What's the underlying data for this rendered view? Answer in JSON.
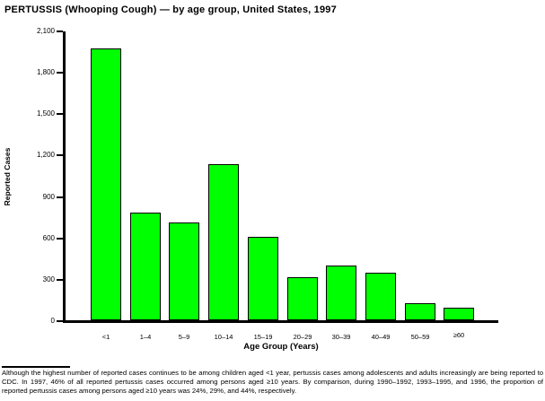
{
  "page": {
    "title": "PERTUSSIS (Whooping Cough) — by age group, United States, 1997",
    "footnote": "Although the highest number of reported cases continues to be among children aged <1 year, pertussis cases among adolescents and adults increasingly are being reported to CDC. In 1997, 46% of all reported pertussis cases occurred among persons aged ≥10 years. By comparison, during 1990–1992, 1993–1995, and 1996, the proportion of reported pertussis cases among persons aged ≥10 years was 24%, 29%, and 44%, respectively."
  },
  "chart_data": {
    "type": "bar",
    "title": "PERTUSSIS (Whooping Cough) — by age group, United States, 1997",
    "categories": [
      "<1",
      "1–4",
      "5–9",
      "10–14",
      "15–19",
      "20–29",
      "30–39",
      "40–49",
      "50–59",
      "≥60"
    ],
    "values": [
      1970,
      780,
      710,
      1130,
      605,
      310,
      395,
      345,
      125,
      90
    ],
    "xlabel": "Age Group (Years)",
    "ylabel": "Reported Cases",
    "ylim": [
      0,
      2100
    ],
    "ytick_step": 300,
    "ytick_labels": [
      "0",
      "300",
      "600",
      "900",
      "1,200",
      "1,500",
      "1,800",
      "2,100"
    ],
    "bar_color": "#00ff00",
    "bar_border_color": "#000000",
    "axis_color": "#000000",
    "grid": false,
    "legend": "none"
  }
}
